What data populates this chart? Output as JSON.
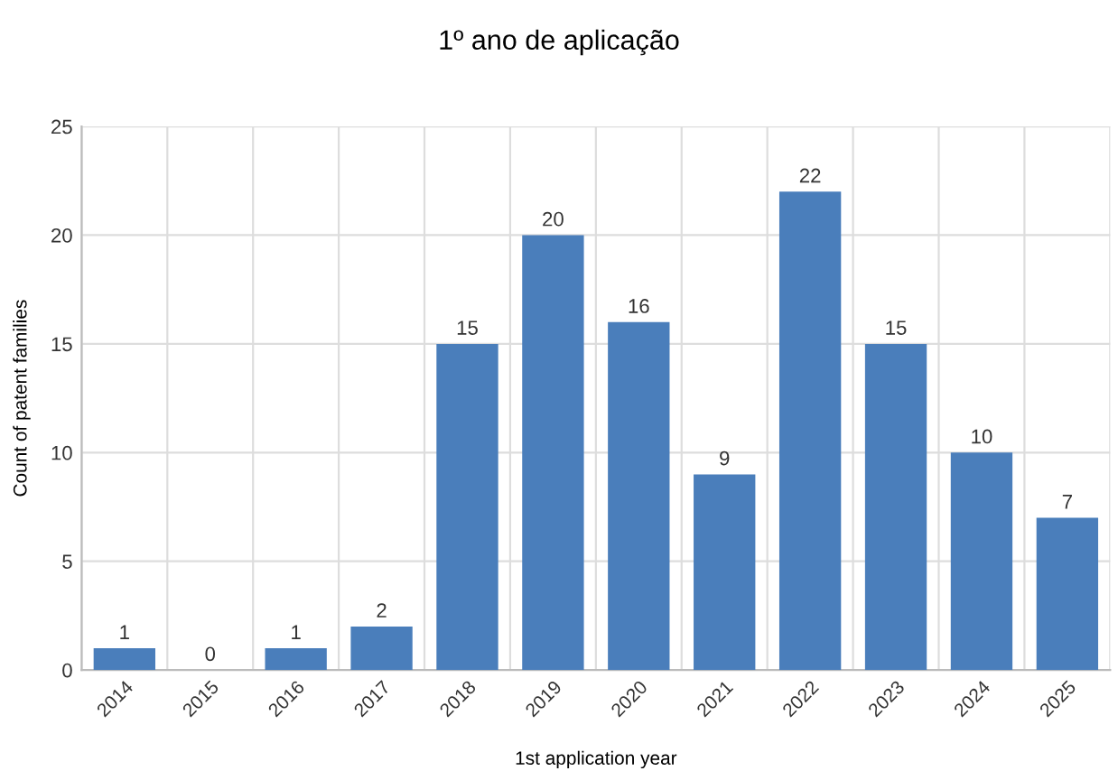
{
  "chart_data": {
    "type": "bar",
    "title": "1º ano de aplicação",
    "xlabel": "1st application year",
    "ylabel": "Count of patent families",
    "categories": [
      "2014",
      "2015",
      "2016",
      "2017",
      "2018",
      "2019",
      "2020",
      "2021",
      "2022",
      "2023",
      "2024",
      "2025"
    ],
    "values": [
      1,
      0,
      1,
      2,
      15,
      20,
      16,
      9,
      22,
      15,
      10,
      7
    ],
    "color": "#4a7ebb",
    "ylim": [
      0,
      25
    ],
    "yticks": [
      0,
      5,
      10,
      15,
      20,
      25
    ],
    "grid": true,
    "data_labels": true,
    "legend": false
  }
}
